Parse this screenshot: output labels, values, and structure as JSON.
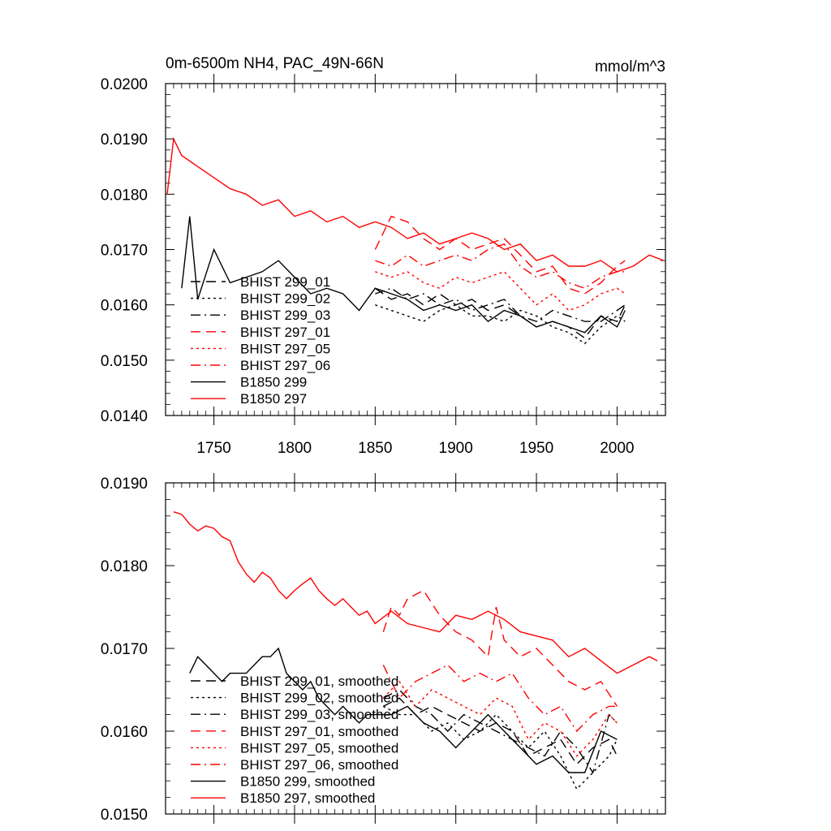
{
  "chart_data": [
    {
      "type": "line",
      "title": "0m-6500m NH4, PAC_49N-66N",
      "units": "mmol/m^3",
      "xlabel": "",
      "ylabel": "",
      "xlim": [
        1720,
        2030
      ],
      "ylim": [
        0.014,
        0.02
      ],
      "x_ticks": [
        1750,
        1800,
        1850,
        1900,
        1950,
        2000
      ],
      "y_ticks": [
        "0.0140",
        "0.0150",
        "0.0160",
        "0.0170",
        "0.0180",
        "0.0190",
        "0.0200"
      ],
      "legend_position": "lower-left",
      "series": [
        {
          "name": "BHIST 299_01",
          "color": "#000000",
          "dash": "dashed",
          "x": [
            1850,
            1860,
            1870,
            1880,
            1890,
            1900,
            1910,
            1920,
            1930,
            1940,
            1950,
            1960,
            1970,
            1980,
            1990,
            2000,
            2005
          ],
          "y": [
            0.0163,
            0.0161,
            0.0162,
            0.016,
            0.0162,
            0.016,
            0.0161,
            0.0159,
            0.016,
            0.0158,
            0.0156,
            0.0157,
            0.0156,
            0.0154,
            0.0158,
            0.0157,
            0.016
          ]
        },
        {
          "name": "BHIST 299_02",
          "color": "#000000",
          "dash": "dotted",
          "x": [
            1850,
            1860,
            1870,
            1880,
            1890,
            1900,
            1910,
            1920,
            1930,
            1940,
            1950,
            1960,
            1970,
            1980,
            1990,
            2000,
            2005
          ],
          "y": [
            0.016,
            0.0159,
            0.0158,
            0.0157,
            0.0159,
            0.016,
            0.0158,
            0.0158,
            0.0157,
            0.0159,
            0.0158,
            0.0156,
            0.0155,
            0.0153,
            0.0156,
            0.0158,
            0.0157
          ]
        },
        {
          "name": "BHIST 299_03",
          "color": "#000000",
          "dash": "dashdot",
          "x": [
            1850,
            1860,
            1870,
            1880,
            1890,
            1900,
            1910,
            1920,
            1930,
            1940,
            1950,
            1960,
            1970,
            1980,
            1990,
            2000,
            2005
          ],
          "y": [
            0.0162,
            0.0163,
            0.0161,
            0.0162,
            0.016,
            0.0161,
            0.0159,
            0.016,
            0.0161,
            0.0158,
            0.0157,
            0.0159,
            0.0158,
            0.0157,
            0.0157,
            0.0159,
            0.016
          ]
        },
        {
          "name": "BHIST 297_01",
          "color": "#ff0000",
          "dash": "dashed",
          "x": [
            1850,
            1860,
            1870,
            1880,
            1890,
            1900,
            1910,
            1920,
            1930,
            1940,
            1950,
            1960,
            1970,
            1980,
            1990,
            2000,
            2005
          ],
          "y": [
            0.017,
            0.0176,
            0.0175,
            0.0172,
            0.017,
            0.0172,
            0.017,
            0.0171,
            0.0172,
            0.0169,
            0.0166,
            0.0167,
            0.0163,
            0.0162,
            0.0164,
            0.0167,
            0.0168
          ]
        },
        {
          "name": "BHIST 297_05",
          "color": "#ff0000",
          "dash": "dotted",
          "x": [
            1850,
            1860,
            1870,
            1880,
            1890,
            1900,
            1910,
            1920,
            1930,
            1940,
            1950,
            1960,
            1970,
            1980,
            1990,
            2000,
            2005
          ],
          "y": [
            0.0166,
            0.0165,
            0.0166,
            0.0164,
            0.0163,
            0.0165,
            0.0164,
            0.0165,
            0.0166,
            0.0163,
            0.016,
            0.0162,
            0.0159,
            0.016,
            0.0162,
            0.0163,
            0.0162
          ]
        },
        {
          "name": "BHIST 297_06",
          "color": "#ff0000",
          "dash": "dashdot",
          "x": [
            1850,
            1860,
            1870,
            1880,
            1890,
            1900,
            1910,
            1920,
            1930,
            1940,
            1950,
            1960,
            1970,
            1980,
            1990,
            2000,
            2005
          ],
          "y": [
            0.0168,
            0.0167,
            0.0169,
            0.0167,
            0.0168,
            0.0169,
            0.0168,
            0.017,
            0.0171,
            0.0167,
            0.0165,
            0.0166,
            0.0164,
            0.0163,
            0.0165,
            0.0166,
            0.0166
          ]
        },
        {
          "name": "B1850 299",
          "color": "#000000",
          "dash": "solid",
          "x": [
            1730,
            1735,
            1740,
            1750,
            1760,
            1770,
            1780,
            1790,
            1800,
            1810,
            1820,
            1830,
            1840,
            1850,
            1860,
            1870,
            1880,
            1890,
            1900,
            1910,
            1920,
            1930,
            1940,
            1950,
            1960,
            1970,
            1980,
            1990,
            2000,
            2005
          ],
          "y": [
            0.0163,
            0.0176,
            0.0161,
            0.017,
            0.0164,
            0.0165,
            0.0166,
            0.0168,
            0.0165,
            0.0162,
            0.0163,
            0.0162,
            0.0159,
            0.0163,
            0.0162,
            0.0161,
            0.0159,
            0.016,
            0.0159,
            0.016,
            0.0157,
            0.0159,
            0.0158,
            0.0156,
            0.0157,
            0.0156,
            0.0155,
            0.0158,
            0.0156,
            0.0159
          ]
        },
        {
          "name": "B1850 297",
          "color": "#ff0000",
          "dash": "solid",
          "x": [
            1721,
            1725,
            1730,
            1740,
            1750,
            1760,
            1770,
            1780,
            1790,
            1800,
            1810,
            1820,
            1830,
            1840,
            1850,
            1860,
            1870,
            1880,
            1890,
            1900,
            1910,
            1920,
            1930,
            1940,
            1950,
            1960,
            1970,
            1980,
            1990,
            2000,
            2010,
            2020,
            2029
          ],
          "y": [
            0.018,
            0.019,
            0.0187,
            0.0185,
            0.0183,
            0.0181,
            0.018,
            0.0178,
            0.0179,
            0.0176,
            0.0177,
            0.0175,
            0.0176,
            0.0174,
            0.0175,
            0.0174,
            0.0172,
            0.0173,
            0.0171,
            0.0172,
            0.0173,
            0.0172,
            0.017,
            0.0171,
            0.0168,
            0.0169,
            0.0167,
            0.0167,
            0.0168,
            0.0166,
            0.0167,
            0.0169,
            0.0168
          ]
        }
      ]
    },
    {
      "type": "line",
      "title": "",
      "xlabel": "",
      "ylabel": "",
      "xlim": [
        1720,
        2030
      ],
      "ylim": [
        0.015,
        0.019
      ],
      "x_ticks": [
        1750,
        1800,
        1850,
        1900,
        1950,
        2000
      ],
      "y_ticks": [
        "0.0150",
        "0.0160",
        "0.0170",
        "0.0180",
        "0.0190"
      ],
      "legend_position": "lower-left",
      "series": [
        {
          "name": "BHIST 299_01, smoothed",
          "color": "#000000",
          "dash": "dashed",
          "x": [
            1855,
            1865,
            1875,
            1885,
            1895,
            1905,
            1915,
            1925,
            1935,
            1945,
            1955,
            1965,
            1975,
            1985,
            1995,
            2000
          ],
          "y": [
            0.0163,
            0.0164,
            0.0162,
            0.0163,
            0.0162,
            0.0161,
            0.016,
            0.0161,
            0.016,
            0.0157,
            0.0158,
            0.0159,
            0.0156,
            0.0158,
            0.0159,
            0.0157
          ]
        },
        {
          "name": "BHIST 299_02, smoothed",
          "color": "#000000",
          "dash": "dotted",
          "x": [
            1855,
            1865,
            1875,
            1885,
            1895,
            1905,
            1915,
            1925,
            1935,
            1945,
            1955,
            1965,
            1975,
            1985,
            1995,
            2000
          ],
          "y": [
            0.0163,
            0.0162,
            0.0162,
            0.016,
            0.0161,
            0.0159,
            0.016,
            0.0162,
            0.016,
            0.0158,
            0.016,
            0.0157,
            0.0153,
            0.0155,
            0.0157,
            0.0159
          ]
        },
        {
          "name": "BHIST 299_03, smoothed",
          "color": "#000000",
          "dash": "dashdot",
          "x": [
            1855,
            1865,
            1875,
            1885,
            1895,
            1905,
            1915,
            1925,
            1935,
            1945,
            1955,
            1965,
            1975,
            1985,
            1995,
            2000
          ],
          "y": [
            0.0164,
            0.0165,
            0.0163,
            0.0162,
            0.016,
            0.0162,
            0.0161,
            0.016,
            0.0159,
            0.0158,
            0.0157,
            0.016,
            0.0158,
            0.0155,
            0.0162,
            0.0161
          ]
        },
        {
          "name": "BHIST 297_01, smoothed",
          "color": "#ff0000",
          "dash": "dashed",
          "x": [
            1855,
            1860,
            1865,
            1870,
            1880,
            1890,
            1900,
            1910,
            1920,
            1925,
            1930,
            1940,
            1950,
            1960,
            1965,
            1970,
            1980,
            1990,
            2000
          ],
          "y": [
            0.0172,
            0.0175,
            0.0174,
            0.0176,
            0.0177,
            0.0174,
            0.0172,
            0.0171,
            0.0169,
            0.0175,
            0.0171,
            0.0169,
            0.017,
            0.0168,
            0.0167,
            0.0166,
            0.0165,
            0.0166,
            0.0163
          ]
        },
        {
          "name": "BHIST 297_05, smoothed",
          "color": "#ff0000",
          "dash": "dotted",
          "x": [
            1855,
            1865,
            1875,
            1885,
            1895,
            1905,
            1915,
            1925,
            1935,
            1945,
            1955,
            1965,
            1975,
            1985,
            1995,
            2000
          ],
          "y": [
            0.0164,
            0.0166,
            0.0163,
            0.0165,
            0.0164,
            0.0163,
            0.0162,
            0.0164,
            0.0163,
            0.0159,
            0.0161,
            0.016,
            0.0157,
            0.0159,
            0.0162,
            0.0161
          ]
        },
        {
          "name": "BHIST 297_06, smoothed",
          "color": "#ff0000",
          "dash": "dashdot",
          "x": [
            1855,
            1865,
            1875,
            1885,
            1895,
            1905,
            1915,
            1925,
            1935,
            1945,
            1955,
            1965,
            1975,
            1985,
            1995,
            2000
          ],
          "y": [
            0.0168,
            0.0164,
            0.0166,
            0.0167,
            0.0168,
            0.0166,
            0.0167,
            0.0166,
            0.0167,
            0.0164,
            0.0162,
            0.0163,
            0.016,
            0.0162,
            0.0163,
            0.0163
          ]
        },
        {
          "name": "B1850 299, smoothed",
          "color": "#000000",
          "dash": "solid",
          "x": [
            1735,
            1740,
            1745,
            1750,
            1755,
            1760,
            1765,
            1770,
            1775,
            1780,
            1785,
            1790,
            1795,
            1800,
            1805,
            1810,
            1815,
            1820,
            1825,
            1830,
            1835,
            1840,
            1845,
            1850,
            1860,
            1870,
            1880,
            1890,
            1900,
            1910,
            1920,
            1930,
            1940,
            1950,
            1960,
            1970,
            1980,
            1990,
            2000
          ],
          "y": [
            0.0167,
            0.0169,
            0.0168,
            0.0167,
            0.0166,
            0.0167,
            0.0167,
            0.0167,
            0.0168,
            0.0169,
            0.0169,
            0.017,
            0.0167,
            0.0166,
            0.0165,
            0.0166,
            0.0164,
            0.0163,
            0.0162,
            0.0163,
            0.0162,
            0.0161,
            0.0162,
            0.0162,
            0.0162,
            0.0163,
            0.0161,
            0.016,
            0.0158,
            0.016,
            0.0162,
            0.016,
            0.0158,
            0.0156,
            0.0157,
            0.0155,
            0.0155,
            0.016,
            0.0159
          ]
        },
        {
          "name": "B1850 297, smoothed",
          "color": "#ff0000",
          "dash": "solid",
          "x": [
            1725,
            1730,
            1735,
            1740,
            1745,
            1750,
            1755,
            1760,
            1765,
            1770,
            1775,
            1780,
            1785,
            1790,
            1795,
            1800,
            1805,
            1810,
            1815,
            1820,
            1825,
            1830,
            1835,
            1840,
            1845,
            1850,
            1860,
            1870,
            1880,
            1890,
            1900,
            1910,
            1920,
            1930,
            1940,
            1950,
            1960,
            1970,
            1980,
            1990,
            2000,
            2010,
            2020,
            2025
          ],
          "y": [
            0.01865,
            0.01862,
            0.0185,
            0.01842,
            0.01848,
            0.01845,
            0.01835,
            0.0183,
            0.01805,
            0.0179,
            0.0178,
            0.01792,
            0.01785,
            0.0177,
            0.0176,
            0.0177,
            0.01778,
            0.01785,
            0.0177,
            0.0176,
            0.01752,
            0.0176,
            0.0175,
            0.0174,
            0.01745,
            0.0173,
            0.01745,
            0.0173,
            0.01725,
            0.0172,
            0.0174,
            0.01735,
            0.01745,
            0.01735,
            0.0172,
            0.01715,
            0.0171,
            0.0169,
            0.017,
            0.01685,
            0.0167,
            0.0168,
            0.0169,
            0.01685
          ]
        }
      ]
    }
  ]
}
